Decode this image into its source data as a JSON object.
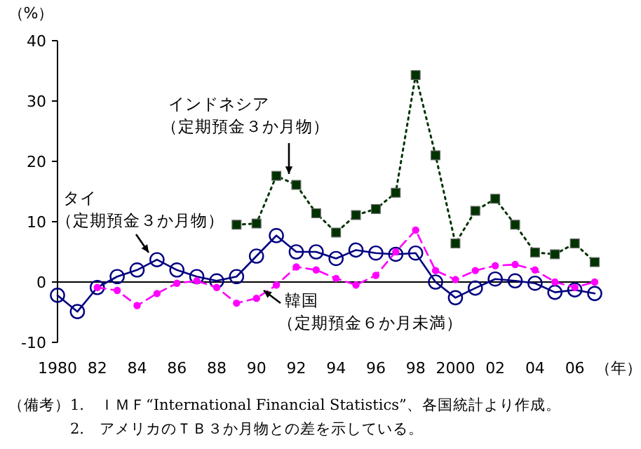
{
  "chart_data": {
    "type": "line",
    "xlabel": "（年）",
    "ylabel": "（%）",
    "x": [
      1980,
      1981,
      1982,
      1983,
      1984,
      1985,
      1986,
      1987,
      1988,
      1989,
      1990,
      1991,
      1992,
      1993,
      1994,
      1995,
      1996,
      1997,
      1998,
      1999,
      2000,
      2001,
      2002,
      2003,
      2004,
      2005,
      2006,
      2007
    ],
    "xlim": [
      1980,
      2007
    ],
    "xticks": [
      {
        "value": 1980,
        "label": "1980"
      },
      {
        "value": 1982,
        "label": "82"
      },
      {
        "value": 1984,
        "label": "84"
      },
      {
        "value": 1986,
        "label": "86"
      },
      {
        "value": 1988,
        "label": "88"
      },
      {
        "value": 1990,
        "label": "90"
      },
      {
        "value": 1992,
        "label": "92"
      },
      {
        "value": 1994,
        "label": "94"
      },
      {
        "value": 1996,
        "label": "96"
      },
      {
        "value": 1998,
        "label": "98"
      },
      {
        "value": 2000,
        "label": "2000"
      },
      {
        "value": 2002,
        "label": "02"
      },
      {
        "value": 2004,
        "label": "04"
      },
      {
        "value": 2006,
        "label": "06"
      }
    ],
    "ylim": [
      -10,
      40
    ],
    "yticks": [
      -10,
      0,
      10,
      20,
      30,
      40
    ],
    "series": [
      {
        "name": "タイ（定期預金３か月物）",
        "color": "#000080",
        "marker": "circle",
        "line_style": "solid",
        "values": [
          -2.2,
          -4.9,
          -0.9,
          0.9,
          2.0,
          3.7,
          2.0,
          0.9,
          0.2,
          0.9,
          4.3,
          7.7,
          5.0,
          5.0,
          3.9,
          5.3,
          4.8,
          4.6,
          4.8,
          0.0,
          -2.6,
          -1.0,
          0.5,
          0.2,
          -0.2,
          -1.7,
          -1.3,
          -1.9
        ]
      },
      {
        "name": "韓国（定期預金６か月未満）",
        "color": "#ff00ff",
        "marker": "circle",
        "line_style": "dashed",
        "values": [
          null,
          null,
          -0.9,
          -1.4,
          -3.9,
          -1.9,
          -0.2,
          0.2,
          -0.9,
          -3.5,
          -2.7,
          -0.5,
          2.5,
          2.0,
          0.6,
          -0.5,
          1.1,
          5.0,
          8.6,
          1.9,
          0.4,
          1.9,
          2.7,
          2.9,
          2.0,
          0.0,
          -0.9,
          0.0
        ]
      },
      {
        "name": "インドネシア（定期預金３か月物）",
        "color": "#003300",
        "marker": "square",
        "line_style": "dotted",
        "values": [
          null,
          null,
          null,
          null,
          null,
          null,
          null,
          null,
          null,
          9.5,
          9.7,
          17.6,
          16.1,
          11.4,
          8.2,
          11.1,
          12.1,
          14.8,
          34.3,
          21.0,
          6.4,
          11.8,
          13.8,
          9.5,
          4.9,
          4.6,
          6.4,
          3.3
        ]
      }
    ],
    "legend": false,
    "ref_lines": [
      {
        "axis": "y",
        "value": 0,
        "color": "#000000"
      }
    ],
    "annotations": [
      "（備考）1.　ＩＭＦ“International Financial Statistics”、各国統計より作成。",
      "2.　アメリカのＴＢ３か月物との差を示している。"
    ]
  }
}
